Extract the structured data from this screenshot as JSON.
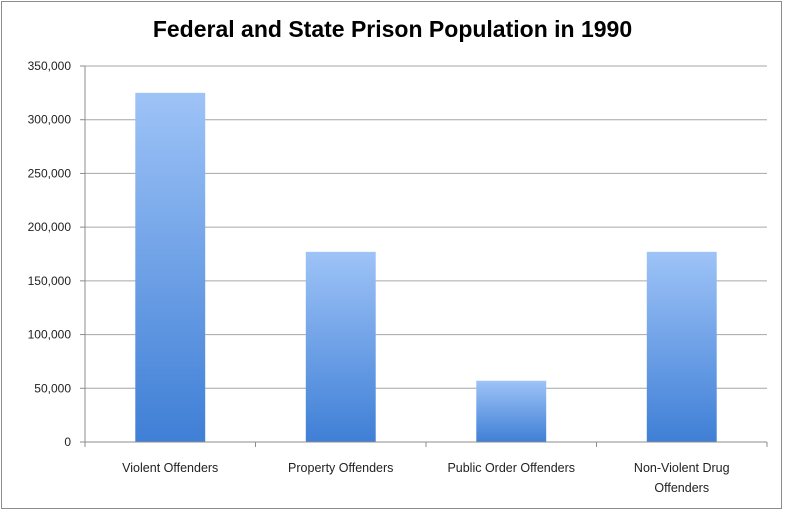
{
  "chart_data": {
    "type": "bar",
    "title": "Federal and State Prison Population in 1990",
    "categories": [
      [
        "Violent Offenders"
      ],
      [
        "Property Offenders"
      ],
      [
        "Public Order Offenders"
      ],
      [
        "Non-Violent Drug",
        "Offenders"
      ]
    ],
    "values": [
      325000,
      177000,
      57000,
      177000
    ],
    "ylim": [
      0,
      350000
    ],
    "yticks": [
      0,
      50000,
      100000,
      150000,
      200000,
      250000,
      300000,
      350000
    ],
    "ytick_labels": [
      "0",
      "50,000",
      "100,000",
      "150,000",
      "200,000",
      "250,000",
      "300,000",
      "350,000"
    ],
    "xlabel": "",
    "ylabel": "",
    "grid": true,
    "legend": "none",
    "colors": {
      "bar_top": "#9ec3f7",
      "bar_bottom": "#3f7fd6",
      "grid": "#a6a6a6",
      "axis": "#8c8c8c"
    }
  }
}
